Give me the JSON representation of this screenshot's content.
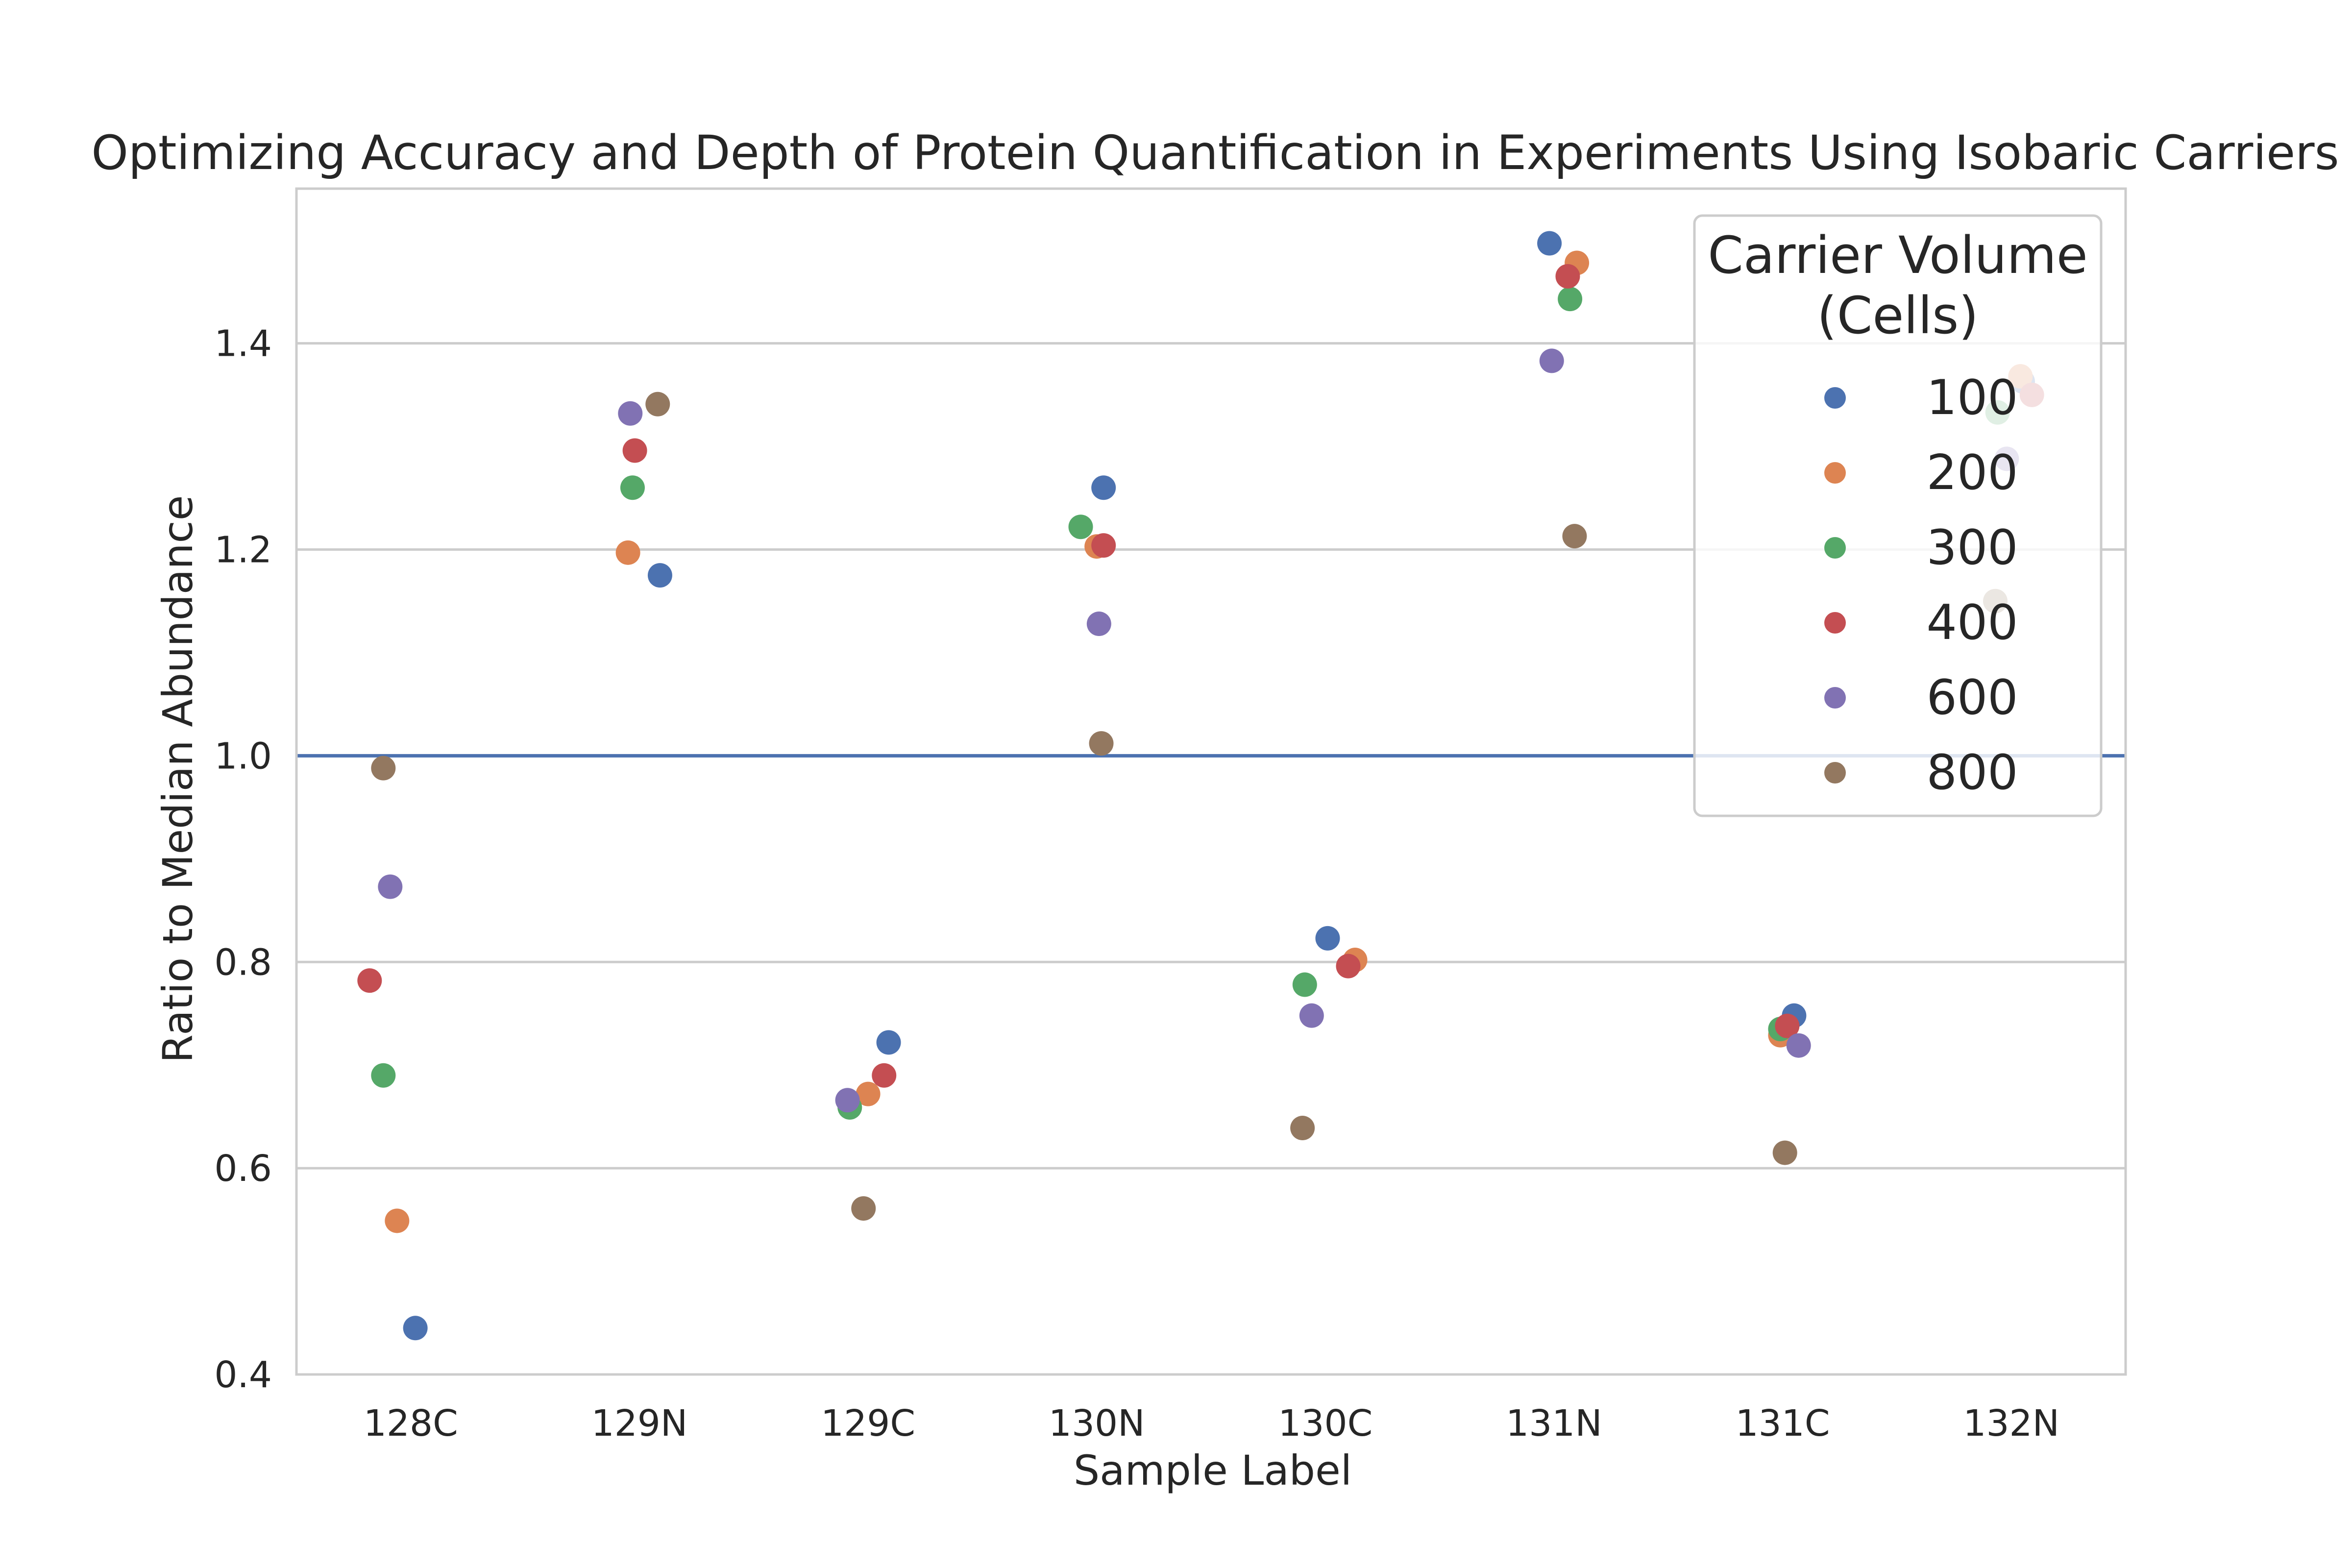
{
  "chart_data": {
    "type": "scatter",
    "title": "Optimizing Accuracy and Depth of Protein Quantification in Experiments Using Isobaric Carriers",
    "xlabel": "Sample Label",
    "ylabel": "Ratio to Median Abundance",
    "categories": [
      "128C",
      "129N",
      "129C",
      "130N",
      "130C",
      "131N",
      "131C",
      "132N"
    ],
    "ylim": [
      0.4,
      1.55
    ],
    "yticks": [
      "0.4",
      "0.6",
      "0.8",
      "1.0",
      "1.2",
      "1.4"
    ],
    "grid": "horizontal",
    "reference_line": {
      "y": 1.0,
      "color": "#4c72b0"
    },
    "legend": {
      "title_line1": "Carrier Volume",
      "title_line2": "(Cells)",
      "placement": "top-right"
    },
    "series": [
      {
        "name": "100",
        "color": "#4c72b0",
        "values": [
          0.445,
          1.175,
          0.722,
          1.26,
          0.823,
          1.497,
          0.748,
          1.363
        ]
      },
      {
        "name": "200",
        "color": "#dd8452",
        "values": [
          0.549,
          1.197,
          0.672,
          1.203,
          0.802,
          1.478,
          0.729,
          1.368
        ]
      },
      {
        "name": "300",
        "color": "#55a868",
        "values": [
          0.69,
          1.26,
          0.659,
          1.222,
          0.778,
          1.443,
          0.735,
          1.333
        ]
      },
      {
        "name": "400",
        "color": "#c44e52",
        "values": [
          0.782,
          1.296,
          0.69,
          1.204,
          0.796,
          1.465,
          0.738,
          1.35
        ]
      },
      {
        "name": "600",
        "color": "#8172b3",
        "values": [
          0.873,
          1.332,
          0.666,
          1.128,
          0.748,
          1.383,
          0.719,
          1.288
        ]
      },
      {
        "name": "800",
        "color": "#937860",
        "values": [
          0.988,
          1.341,
          0.561,
          1.012,
          0.639,
          1.213,
          0.615,
          1.15
        ]
      }
    ]
  }
}
